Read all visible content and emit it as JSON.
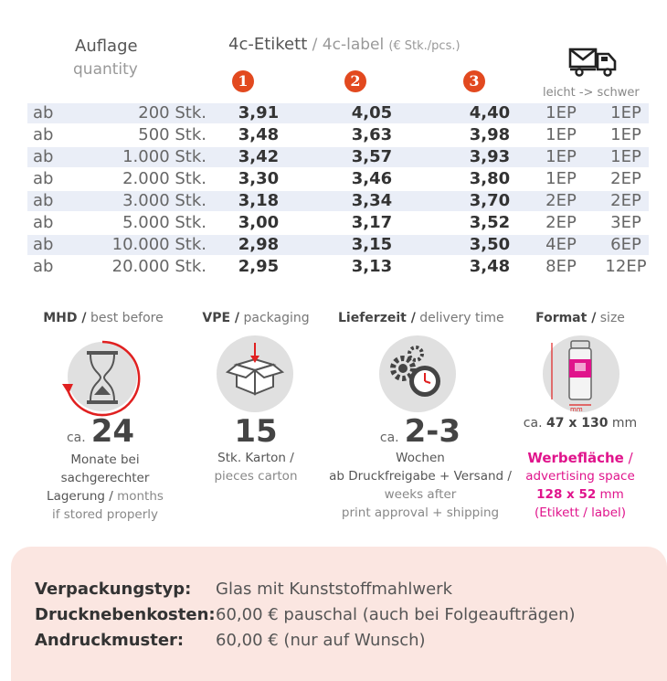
{
  "header": {
    "quantity_de": "Auflage",
    "quantity_en": "quantity",
    "label_de": "4c-Etikett",
    "label_sep": " / ",
    "label_en": "4c-label",
    "label_unit": "(€ Stk./pcs.)",
    "badges": [
      "1",
      "2",
      "3"
    ],
    "shipping_icon": "mail-truck-icon",
    "weight_note": "leicht -> schwer"
  },
  "rows": [
    {
      "ab": "ab",
      "qty": "200 Stk.",
      "p1": "3,91",
      "p2": "4,05",
      "p3": "4,40",
      "e1": "1EP",
      "e2": "1EP"
    },
    {
      "ab": "ab",
      "qty": "500 Stk.",
      "p1": "3,48",
      "p2": "3,63",
      "p3": "3,98",
      "e1": "1EP",
      "e2": "1EP"
    },
    {
      "ab": "ab",
      "qty": "1.000 Stk.",
      "p1": "3,42",
      "p2": "3,57",
      "p3": "3,93",
      "e1": "1EP",
      "e2": "1EP"
    },
    {
      "ab": "ab",
      "qty": "2.000 Stk.",
      "p1": "3,30",
      "p2": "3,46",
      "p3": "3,80",
      "e1": "1EP",
      "e2": "2EP"
    },
    {
      "ab": "ab",
      "qty": "3.000 Stk.",
      "p1": "3,18",
      "p2": "3,34",
      "p3": "3,70",
      "e1": "2EP",
      "e2": "2EP"
    },
    {
      "ab": "ab",
      "qty": "5.000 Stk.",
      "p1": "3,00",
      "p2": "3,17",
      "p3": "3,52",
      "e1": "2EP",
      "e2": "3EP"
    },
    {
      "ab": "ab",
      "qty": "10.000 Stk.",
      "p1": "2,98",
      "p2": "3,15",
      "p3": "3,50",
      "e1": "4EP",
      "e2": "6EP"
    },
    {
      "ab": "ab",
      "qty": "20.000 Stk.",
      "p1": "2,95",
      "p2": "3,13",
      "p3": "3,48",
      "e1": "8EP",
      "e2": "12EP"
    }
  ],
  "info": {
    "mhd": {
      "title_de": "MHD /",
      "title_en": "best before",
      "prefix": "ca.",
      "value": "24",
      "line1": "Monate bei",
      "line2": "sachgerechter",
      "line3_de": "Lagerung /",
      "line3_en": "months",
      "line4": "if stored properly",
      "icon": "hourglass-icon"
    },
    "vpe": {
      "title_de": "VPE /",
      "title_en": "packaging",
      "value": "15",
      "line1": "Stk. Karton /",
      "line2": "pieces carton",
      "icon": "box-icon"
    },
    "delivery": {
      "title_de": "Lieferzeit /",
      "title_en": "delivery time",
      "prefix": "ca.",
      "value": "2-3",
      "line1": "Wochen",
      "line2": "ab Druckfreigabe + Versand /",
      "line3": "weeks after",
      "line4": "print approval + shipping",
      "icon": "gears-clock-icon"
    },
    "format": {
      "title_de": "Format /",
      "title_en": "size",
      "prefix": "ca.",
      "value": "47 x 130",
      "unit": "mm",
      "adv_de": "Werbefläche",
      "adv_sep": " /",
      "adv_en": "advertising space",
      "adv_value": "128 x 52",
      "adv_unit": "mm",
      "adv_note": "(Etikett / label)",
      "icon": "jar-dimensions-icon",
      "icon_label": "mm"
    }
  },
  "details": [
    {
      "key": "Verpackungstyp:",
      "value": "Glas mit Kunststoffmahlwerk"
    },
    {
      "key": "Drucknebenkosten:",
      "value": "60,00 € pauschal (auch bei Folgeaufträgen)"
    },
    {
      "key": "Andruckmuster:",
      "value": "60,00 € (nur auf Wunsch)"
    }
  ],
  "colors": {
    "badge": "#e2491f",
    "pink": "#e0148c",
    "row_shade": "#eaeef7",
    "panel": "#fbe6e1",
    "arrow": "#e02020"
  }
}
